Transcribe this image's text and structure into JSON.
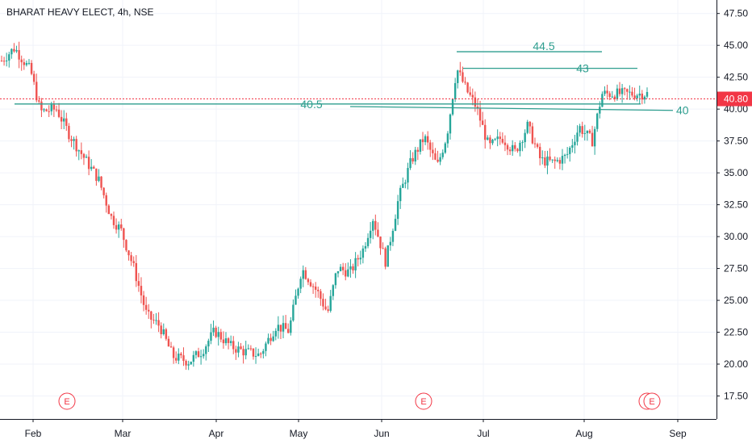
{
  "chart_data": {
    "type": "candlestick",
    "title": "BHARAT HEAVY ELECT, 4h, NSE",
    "current_price": {
      "value": 40.8,
      "label": "40.80",
      "color": "#f23645"
    },
    "ylim": [
      15.5,
      48.5
    ],
    "y_ticks": [
      {
        "v": 47.5,
        "label": "47.50"
      },
      {
        "v": 45,
        "label": "45.00"
      },
      {
        "v": 42.5,
        "label": "42.50"
      },
      {
        "v": 40,
        "label": "40.00"
      },
      {
        "v": 37.5,
        "label": "37.50"
      },
      {
        "v": 35,
        "label": "35.00"
      },
      {
        "v": 32.5,
        "label": "32.50"
      },
      {
        "v": 30,
        "label": "30.00"
      },
      {
        "v": 27.5,
        "label": "27.50"
      },
      {
        "v": 25,
        "label": "25.00"
      },
      {
        "v": 22.5,
        "label": "22.50"
      },
      {
        "v": 20,
        "label": "20.00"
      },
      {
        "v": 17.5,
        "label": "17.50"
      }
    ],
    "x_ticks": [
      "Feb",
      "Mar",
      "Apr",
      "May",
      "Jun",
      "Jul",
      "Aug",
      "Sep"
    ],
    "trend_lines": [
      {
        "label": "44.5",
        "from": [
          0.705,
          44.5
        ],
        "to": [
          0.93,
          44.5
        ]
      },
      {
        "label": "43",
        "from": [
          0.715,
          43.2
        ],
        "to": [
          0.985,
          43.2
        ]
      },
      {
        "label": "40.5",
        "from": [
          0.02,
          40.4
        ],
        "to": [
          0.99,
          40.4
        ]
      },
      {
        "label": "40",
        "from": [
          0.54,
          40.2
        ],
        "to": [
          1.04,
          39.9
        ]
      }
    ],
    "earnings_markers": [
      "E",
      "E",
      "E"
    ],
    "anchors": [
      [
        0.0,
        43.8
      ],
      [
        0.02,
        44.8
      ],
      [
        0.045,
        43.0
      ],
      [
        0.06,
        39.8
      ],
      [
        0.085,
        40.0
      ],
      [
        0.105,
        38.0
      ],
      [
        0.13,
        36.0
      ],
      [
        0.15,
        34.5
      ],
      [
        0.17,
        31.5
      ],
      [
        0.185,
        30.5
      ],
      [
        0.205,
        27.5
      ],
      [
        0.225,
        23.8
      ],
      [
        0.245,
        23.0
      ],
      [
        0.265,
        20.6
      ],
      [
        0.29,
        20.2
      ],
      [
        0.31,
        21.0
      ],
      [
        0.33,
        22.6
      ],
      [
        0.355,
        21.4
      ],
      [
        0.375,
        21.0
      ],
      [
        0.4,
        20.7
      ],
      [
        0.425,
        23.0
      ],
      [
        0.445,
        22.6
      ],
      [
        0.465,
        27.5
      ],
      [
        0.49,
        25.6
      ],
      [
        0.505,
        24.0
      ],
      [
        0.52,
        27.5
      ],
      [
        0.54,
        27.2
      ],
      [
        0.56,
        29.0
      ],
      [
        0.575,
        31.5
      ],
      [
        0.595,
        28.0
      ],
      [
        0.615,
        33.0
      ],
      [
        0.635,
        36.0
      ],
      [
        0.655,
        37.8
      ],
      [
        0.675,
        35.5
      ],
      [
        0.69,
        38.0
      ],
      [
        0.705,
        43.2
      ],
      [
        0.72,
        41.5
      ],
      [
        0.735,
        40.2
      ],
      [
        0.755,
        37.0
      ],
      [
        0.775,
        37.8
      ],
      [
        0.795,
        36.6
      ],
      [
        0.815,
        38.7
      ],
      [
        0.835,
        36.0
      ],
      [
        0.855,
        35.8
      ],
      [
        0.875,
        36.3
      ],
      [
        0.895,
        38.6
      ],
      [
        0.915,
        37.5
      ],
      [
        0.93,
        41.2
      ]
    ]
  }
}
